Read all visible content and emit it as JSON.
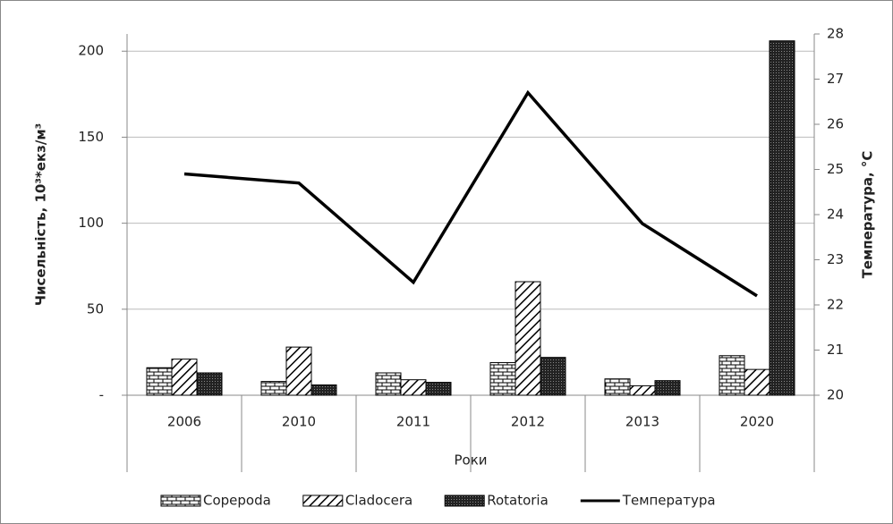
{
  "chart_data": {
    "type": "bar",
    "categories": [
      "2006",
      "2010",
      "2011",
      "2012",
      "2013",
      "2020"
    ],
    "x_label": "Роки",
    "y_label": "Чисельність, 10³*екз/м³",
    "y2_label": "Температура, °С",
    "ylim": [
      0,
      210
    ],
    "yticks": [
      {
        "value": 0,
        "label": "-"
      },
      50,
      100,
      150,
      200
    ],
    "y2lim": [
      20,
      28
    ],
    "y2ticks": [
      20,
      21,
      22,
      23,
      24,
      25,
      26,
      27,
      28
    ],
    "grid": true,
    "legend": "bottom",
    "series": [
      {
        "name": "Copepoda",
        "pattern": "bricks",
        "values": [
          16,
          8,
          13,
          19,
          9.5,
          23
        ]
      },
      {
        "name": "Cladocera",
        "pattern": "diagonal",
        "values": [
          21,
          28,
          9,
          66,
          5.5,
          15
        ]
      },
      {
        "name": "Rotatoria",
        "pattern": "dots",
        "values": [
          13,
          6,
          7.5,
          22,
          8.5,
          206
        ]
      },
      {
        "name": "Температура",
        "type": "line",
        "axis": "y2",
        "color": "#000000",
        "values": [
          24.9,
          24.7,
          22.5,
          26.7,
          23.8,
          22.2
        ]
      }
    ]
  }
}
